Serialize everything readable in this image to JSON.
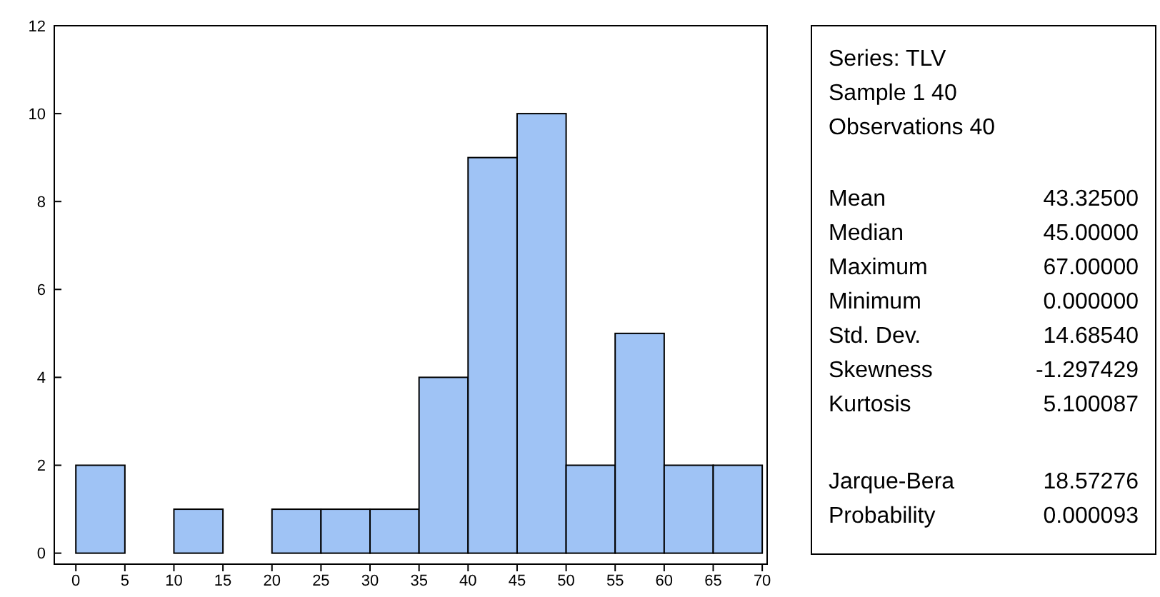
{
  "chart_data": {
    "type": "histogram",
    "bins": [
      0,
      5,
      10,
      15,
      20,
      25,
      30,
      35,
      40,
      45,
      50,
      55,
      60,
      65,
      70
    ],
    "values": [
      2,
      0,
      1,
      0,
      1,
      1,
      1,
      4,
      9,
      10,
      2,
      5,
      2,
      2
    ],
    "color": "#9fc3f5",
    "xlim": [
      -2.2,
      70.5
    ],
    "ylim": [
      -0.25,
      12
    ],
    "xticks": [
      0,
      5,
      10,
      15,
      20,
      25,
      30,
      35,
      40,
      45,
      50,
      55,
      60,
      65,
      70
    ],
    "yticks": [
      0,
      2,
      4,
      6,
      8,
      10,
      12
    ],
    "annotations": [
      "Series: TLV",
      "Sample 1 40",
      "Observations 40",
      "Mean",
      "43.32500",
      "Median",
      "45.00000",
      "Maximum",
      "67.00000",
      "Minimum",
      "0.000000",
      "Std. Dev.",
      "14.68540",
      "Skewness",
      "-1.297429",
      "Kurtosis",
      "5.100087",
      "Jarque-Bera",
      "18.57276",
      "Probability",
      "0.000093"
    ]
  }
}
